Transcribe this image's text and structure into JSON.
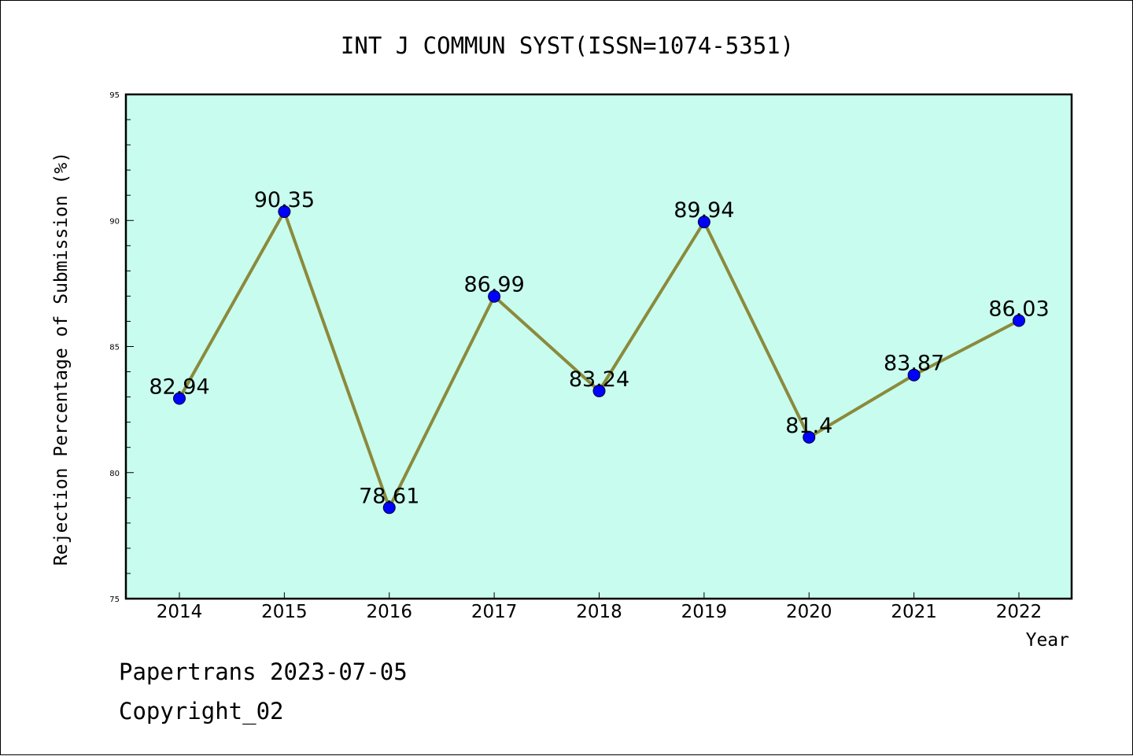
{
  "chart_data": {
    "type": "line",
    "title": "INT J COMMUN SYST(ISSN=1074-5351)",
    "xlabel": "Year",
    "ylabel": "Rejection Percentage of Submission (%)",
    "categories": [
      "2014",
      "2015",
      "2016",
      "2017",
      "2018",
      "2019",
      "2020",
      "2021",
      "2022"
    ],
    "values": [
      82.94,
      90.35,
      78.61,
      86.99,
      83.24,
      89.94,
      81.4,
      83.87,
      86.03
    ],
    "value_labels": [
      "82.94",
      "90.35",
      "78.61",
      "86.99",
      "83.24",
      "89.94",
      "81.4",
      "83.87",
      "86.03"
    ],
    "ylim": [
      75,
      95
    ],
    "yticks": [
      75,
      80,
      85,
      90,
      95
    ],
    "grid": false,
    "colors": {
      "plot_background": "#c8fcee",
      "line": "#8b8a3c",
      "marker": "#0000ff"
    }
  },
  "footer": {
    "line1": "Papertrans 2023-07-05",
    "line2": "Copyright_02"
  }
}
